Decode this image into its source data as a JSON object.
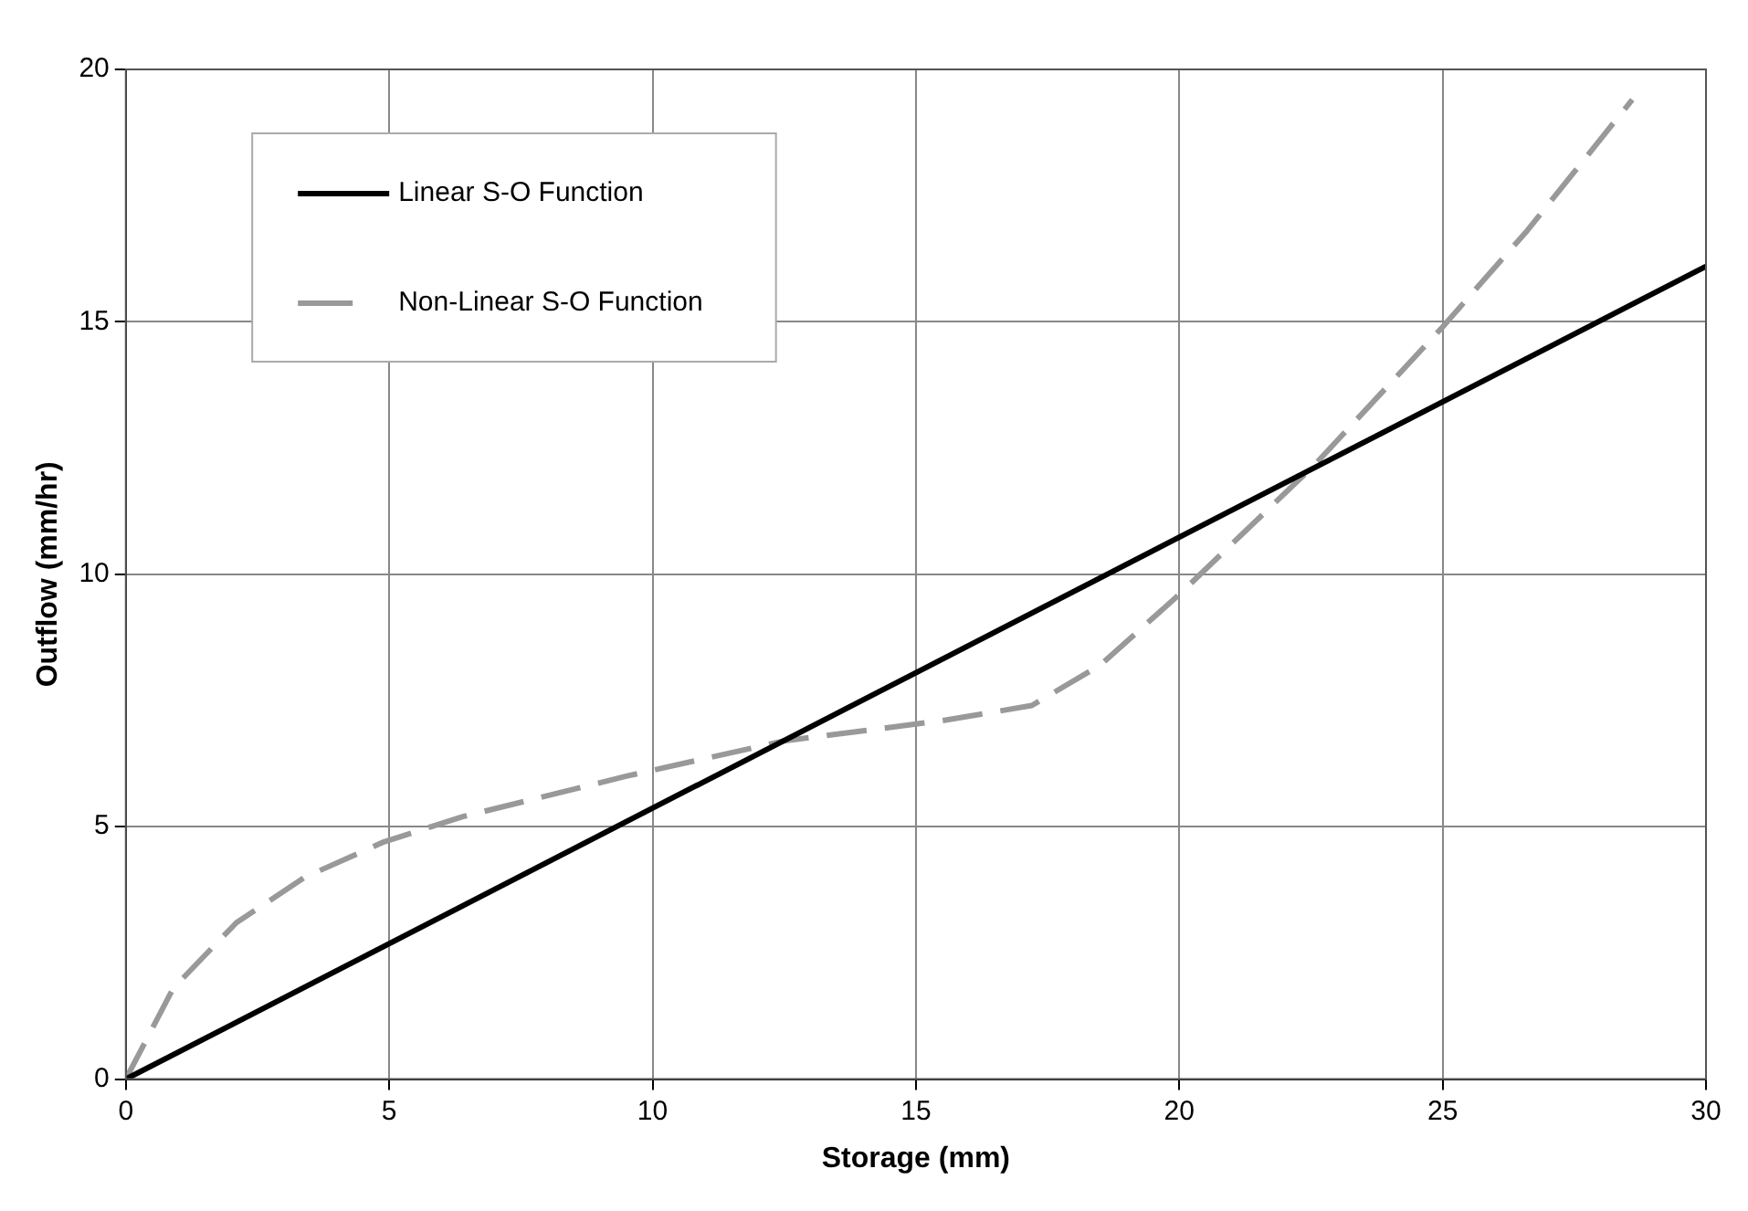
{
  "chart_data": {
    "type": "line",
    "xlabel": "Storage (mm)",
    "ylabel": "Outflow (mm/hr)",
    "xlim": [
      0,
      30
    ],
    "xticks": [
      0,
      5,
      10,
      15,
      20,
      25,
      30
    ],
    "ylim": [
      0,
      20
    ],
    "yticks": [
      0,
      5,
      10,
      15,
      20
    ],
    "grid": true,
    "legend": "top left",
    "marker": "none",
    "series": [
      {
        "name": "Linear S-O Function",
        "color": "#000000",
        "line_style": "solid",
        "x": [
          0,
          30
        ],
        "values": [
          0,
          16.1
        ]
      },
      {
        "name": "Non-Linear S-O Function",
        "color": "#999999",
        "line_style": "dashed",
        "x": [
          0,
          0.9,
          2.1,
          3.4,
          4.9,
          6.4,
          9.5,
          12.5,
          15.5,
          17.2,
          18.5,
          20,
          22.6,
          25,
          26.6,
          28.6
        ],
        "values": [
          0,
          1.8,
          3.1,
          4,
          4.7,
          5.2,
          6,
          6.7,
          7.1,
          7.4,
          8.2,
          9.6,
          12.2,
          14.9,
          16.8,
          19.4
        ]
      }
    ]
  }
}
